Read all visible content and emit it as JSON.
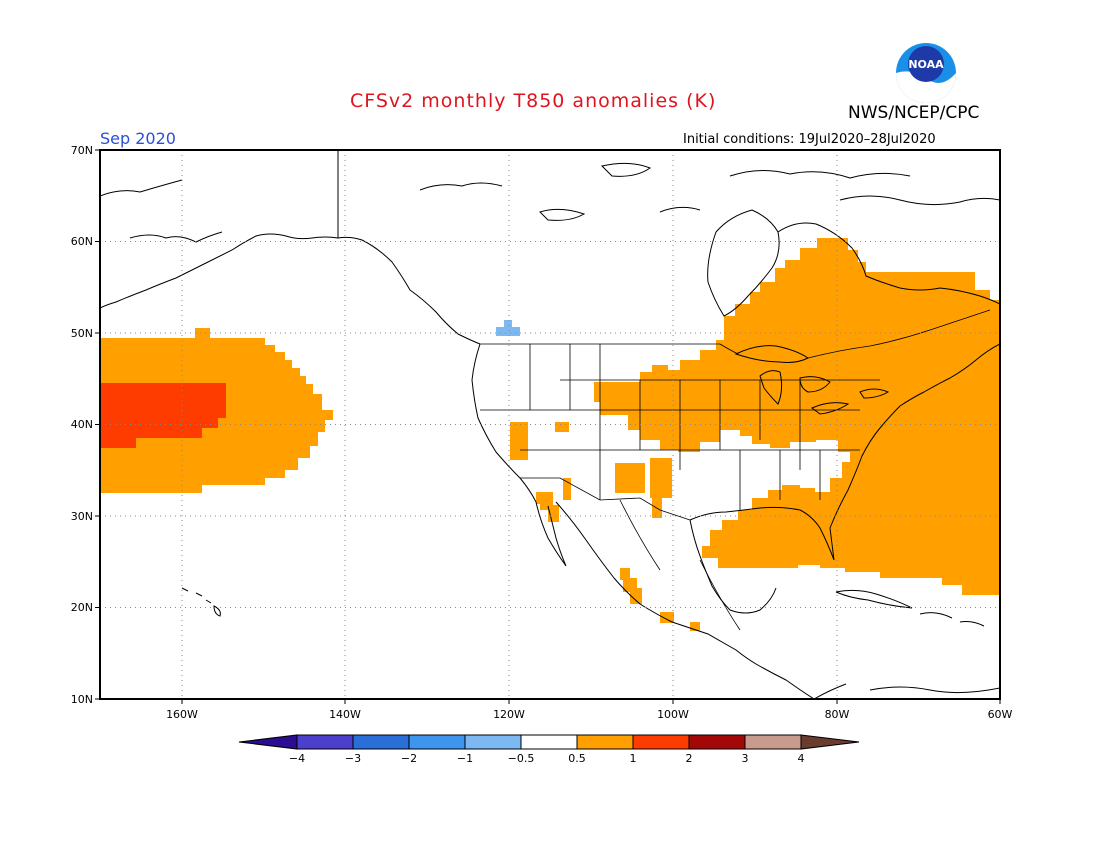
{
  "header": {
    "title": "CFSv2 monthly T850 anomalies (K)",
    "agency": "NWS/NCEP/CPC",
    "logo_text": "NOAA",
    "valid_month": "Sep 2020",
    "initial_conditions": "Initial conditions: 19Jul2020–28Jul2020"
  },
  "map": {
    "lon_range": [
      -170,
      -60
    ],
    "lat_range": [
      10,
      70
    ],
    "lat_labels": [
      "70N",
      "60N",
      "50N",
      "40N",
      "30N",
      "20N",
      "10N"
    ],
    "lon_labels": [
      "160W",
      "140W",
      "120W",
      "100W",
      "80W",
      "60W"
    ]
  },
  "colorbar": {
    "colors": [
      "#2a0d91",
      "#4b3fcc",
      "#2a6fd8",
      "#3e95ee",
      "#7cb8f2",
      "#ffffff",
      "#ffa000",
      "#ff3c00",
      "#a30808",
      "#c89c8c",
      "#6a3c2e"
    ],
    "labels": [
      "−4",
      "−3",
      "−2",
      "−1",
      "−0.5",
      "0.5",
      "1",
      "2",
      "3",
      "4"
    ]
  },
  "legend_colors": {
    "warm_1": "#ffa000",
    "warm_2": "#ff3c00",
    "cool_1": "#7cb8f2"
  }
}
